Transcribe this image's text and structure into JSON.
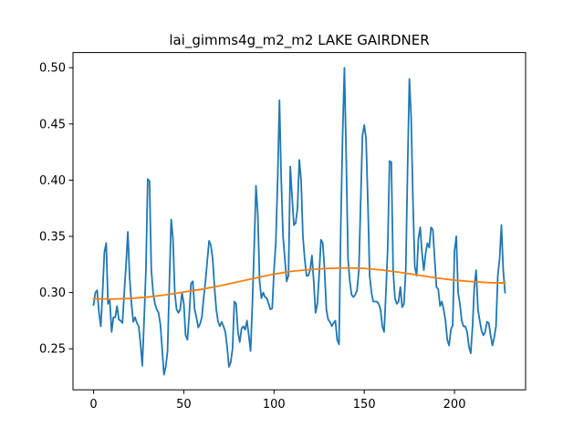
{
  "chart_data": {
    "type": "line",
    "title": "lai_gimms4g_m2_m2 LAKE GAIRDNER",
    "xlabel": "",
    "ylabel": "",
    "xlim": [
      -11.4,
      239.4
    ],
    "ylim": [
      0.2135,
      0.5135
    ],
    "grid": false,
    "legend": "none",
    "x_ticks": [
      0,
      50,
      100,
      150,
      200
    ],
    "x_tick_labels": [
      "0",
      "50",
      "100",
      "150",
      "200"
    ],
    "y_ticks": [
      0.25,
      0.3,
      0.35,
      0.4,
      0.45,
      0.5
    ],
    "y_tick_labels": [
      "0.25",
      "0.30",
      "0.35",
      "0.40",
      "0.45",
      "0.50"
    ],
    "series": [
      {
        "color": "#1f77b4",
        "x": [
          0,
          1,
          2,
          3,
          4,
          5,
          6,
          7,
          8,
          9,
          10,
          11,
          12,
          13,
          14,
          15,
          16,
          17,
          18,
          19,
          20,
          21,
          22,
          23,
          24,
          25,
          26,
          27,
          28,
          29,
          30,
          31,
          32,
          33,
          34,
          35,
          36,
          37,
          38,
          39,
          40,
          41,
          42,
          43,
          44,
          45,
          46,
          47,
          48,
          49,
          50,
          51,
          52,
          53,
          54,
          55,
          56,
          57,
          58,
          59,
          60,
          61,
          62,
          63,
          64,
          65,
          66,
          67,
          68,
          69,
          70,
          71,
          72,
          73,
          74,
          75,
          76,
          77,
          78,
          79,
          80,
          81,
          82,
          83,
          84,
          85,
          86,
          87,
          88,
          89,
          90,
          91,
          92,
          93,
          94,
          95,
          96,
          97,
          98,
          99,
          100,
          101,
          102,
          103,
          104,
          105,
          106,
          107,
          108,
          109,
          110,
          111,
          112,
          113,
          114,
          115,
          116,
          117,
          118,
          119,
          120,
          121,
          122,
          123,
          124,
          125,
          126,
          127,
          128,
          129,
          130,
          131,
          132,
          133,
          134,
          135,
          136,
          137,
          138,
          139,
          140,
          141,
          142,
          143,
          144,
          145,
          146,
          147,
          148,
          149,
          150,
          151,
          152,
          153,
          154,
          155,
          156,
          157,
          158,
          159,
          160,
          161,
          162,
          163,
          164,
          165,
          166,
          167,
          168,
          169,
          170,
          171,
          172,
          173,
          174,
          175,
          176,
          177,
          178,
          179,
          180,
          181,
          182,
          183,
          184,
          185,
          186,
          187,
          188,
          189,
          190,
          191,
          192,
          193,
          194,
          195,
          196,
          197,
          198,
          199,
          200,
          201,
          202,
          203,
          204,
          205,
          206,
          207,
          208,
          209,
          210,
          211,
          212,
          213,
          214,
          215,
          216,
          217,
          218,
          219,
          220,
          221,
          222,
          223,
          224,
          225,
          226,
          227,
          228
        ],
        "values": [
          0.289,
          0.3,
          0.302,
          0.282,
          0.27,
          0.3,
          0.336,
          0.344,
          0.29,
          0.293,
          0.265,
          0.278,
          0.278,
          0.288,
          0.276,
          0.275,
          0.273,
          0.3,
          0.325,
          0.354,
          0.313,
          0.29,
          0.274,
          0.278,
          0.273,
          0.27,
          0.255,
          0.235,
          0.275,
          0.32,
          0.401,
          0.399,
          0.32,
          0.3,
          0.29,
          0.285,
          0.282,
          0.272,
          0.25,
          0.227,
          0.234,
          0.248,
          0.308,
          0.365,
          0.348,
          0.3,
          0.285,
          0.282,
          0.285,
          0.3,
          0.29,
          0.262,
          0.258,
          0.28,
          0.308,
          0.31,
          0.285,
          0.278,
          0.269,
          0.272,
          0.278,
          0.295,
          0.31,
          0.328,
          0.346,
          0.342,
          0.33,
          0.305,
          0.285,
          0.274,
          0.27,
          0.274,
          0.27,
          0.265,
          0.252,
          0.234,
          0.238,
          0.25,
          0.292,
          0.29,
          0.265,
          0.256,
          0.268,
          0.27,
          0.267,
          0.275,
          0.262,
          0.248,
          0.29,
          0.34,
          0.395,
          0.37,
          0.31,
          0.295,
          0.3,
          0.296,
          0.295,
          0.29,
          0.285,
          0.286,
          0.32,
          0.345,
          0.4,
          0.471,
          0.4,
          0.35,
          0.33,
          0.31,
          0.315,
          0.412,
          0.385,
          0.36,
          0.362,
          0.375,
          0.418,
          0.4,
          0.35,
          0.33,
          0.315,
          0.315,
          0.32,
          0.333,
          0.31,
          0.282,
          0.29,
          0.316,
          0.347,
          0.344,
          0.32,
          0.285,
          0.276,
          0.274,
          0.27,
          0.273,
          0.275,
          0.258,
          0.254,
          0.36,
          0.44,
          0.5,
          0.42,
          0.33,
          0.31,
          0.298,
          0.296,
          0.298,
          0.302,
          0.32,
          0.38,
          0.44,
          0.449,
          0.437,
          0.38,
          0.315,
          0.3,
          0.292,
          0.292,
          0.292,
          0.29,
          0.285,
          0.27,
          0.265,
          0.3,
          0.34,
          0.417,
          0.416,
          0.32,
          0.295,
          0.29,
          0.292,
          0.305,
          0.287,
          0.29,
          0.32,
          0.41,
          0.49,
          0.455,
          0.38,
          0.323,
          0.315,
          0.348,
          0.358,
          0.335,
          0.32,
          0.335,
          0.344,
          0.34,
          0.358,
          0.356,
          0.33,
          0.305,
          0.303,
          0.288,
          0.292,
          0.285,
          0.275,
          0.258,
          0.253,
          0.267,
          0.271,
          0.337,
          0.35,
          0.3,
          0.29,
          0.275,
          0.27,
          0.27,
          0.265,
          0.252,
          0.246,
          0.27,
          0.305,
          0.32,
          0.285,
          0.275,
          0.266,
          0.262,
          0.265,
          0.274,
          0.273,
          0.262,
          0.253,
          0.26,
          0.27,
          0.315,
          0.33,
          0.36,
          0.32,
          0.3
        ]
      },
      {
        "color": "#ff7f0e",
        "x": [
          0,
          10,
          20,
          30,
          40,
          50,
          60,
          70,
          80,
          90,
          100,
          110,
          120,
          130,
          140,
          150,
          160,
          170,
          180,
          190,
          200,
          210,
          220,
          228
        ],
        "values": [
          0.2945,
          0.2942,
          0.2948,
          0.296,
          0.298,
          0.3005,
          0.303,
          0.306,
          0.3095,
          0.313,
          0.3165,
          0.319,
          0.3205,
          0.3215,
          0.3219,
          0.3215,
          0.32,
          0.318,
          0.3155,
          0.313,
          0.311,
          0.3097,
          0.3088,
          0.3086
        ]
      }
    ]
  }
}
